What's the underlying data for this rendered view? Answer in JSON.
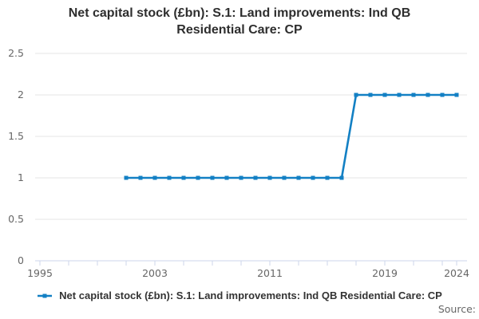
{
  "title_lines": [
    "Net capital stock (£bn): S.1: Land improvements: Ind QB",
    "Residential Care: CP"
  ],
  "legend": {
    "series_label": "Net capital stock (£bn): S.1: Land improvements: Ind QB Residential Care: CP"
  },
  "source_label": "Source:",
  "colors": {
    "series": "#1380c4",
    "axis_line": "#ccd6eb",
    "gridline": "#e6e6e6",
    "tick_label": "#666666",
    "title": "#2e2e2e",
    "legend_text": "#333333"
  },
  "chart_data": {
    "type": "line",
    "title": "Net capital stock (£bn): S.1: Land improvements: Ind QB Residential Care: CP",
    "series": [
      {
        "name": "Net capital stock (£bn): S.1: Land improvements: Ind QB Residential Care: CP",
        "x": [
          2001,
          2002,
          2003,
          2004,
          2005,
          2006,
          2007,
          2008,
          2009,
          2010,
          2011,
          2012,
          2013,
          2014,
          2015,
          2016,
          2017,
          2018,
          2019,
          2020,
          2021,
          2022,
          2023,
          2024
        ],
        "values": [
          1,
          1,
          1,
          1,
          1,
          1,
          1,
          1,
          1,
          1,
          1,
          1,
          1,
          1,
          1,
          1,
          2,
          2,
          2,
          2,
          2,
          2,
          2,
          2
        ]
      }
    ],
    "xlabel": "",
    "ylabel": "",
    "x_tick_labels": [
      1995,
      2003,
      2011,
      2019,
      2024
    ],
    "x_minor_tick_interval_years": 2,
    "y_ticks": [
      0,
      0.5,
      1,
      1.5,
      2,
      2.5
    ],
    "xlim": [
      1995,
      2024
    ],
    "ylim": [
      0,
      2.5
    ],
    "grid": true,
    "marker": "square",
    "legend_position": "bottom"
  }
}
